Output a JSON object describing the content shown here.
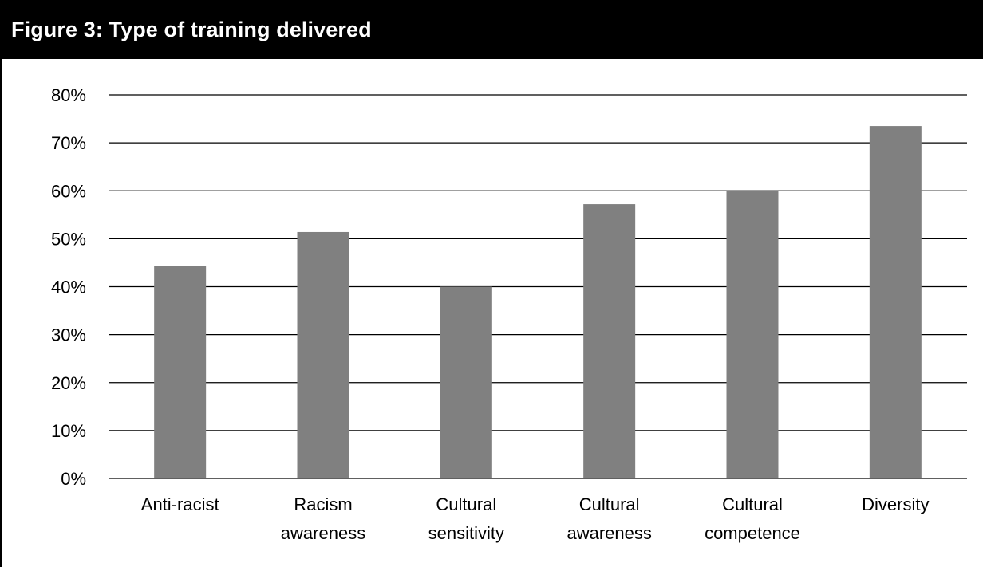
{
  "title": "Figure 3: Type of training delivered",
  "colors": {
    "bar": "#808080",
    "header_bg": "#000000",
    "header_text": "#ffffff"
  },
  "chart_data": {
    "type": "bar",
    "title": "Figure 3: Type of training delivered",
    "xlabel": "",
    "ylabel": "",
    "categories": [
      [
        "Anti-racist"
      ],
      [
        "Racism",
        "awareness"
      ],
      [
        "Cultural",
        "sensitivity"
      ],
      [
        "Cultural",
        "awareness"
      ],
      [
        "Cultural",
        "competence"
      ],
      [
        "Diversity"
      ]
    ],
    "values": [
      44.4,
      51.4,
      40.0,
      57.2,
      60.0,
      73.5
    ],
    "value_unit": "%",
    "ylim": [
      0,
      80
    ],
    "yticks": [
      "0%",
      "10%",
      "20%",
      "30%",
      "40%",
      "50%",
      "60%",
      "70%",
      "80%"
    ],
    "grid": true,
    "legend": "none"
  }
}
